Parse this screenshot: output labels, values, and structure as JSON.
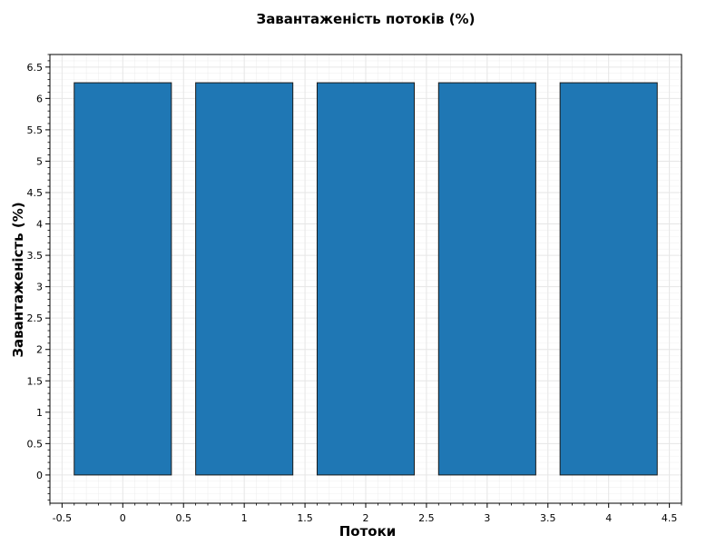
{
  "chart_data": {
    "type": "bar",
    "title": "Завантаженість потоків (%)",
    "xlabel": "Потоки",
    "ylabel": "Завантаженість (%)",
    "x": [
      0,
      1,
      2,
      3,
      4
    ],
    "values": [
      6.25,
      6.25,
      6.25,
      6.25,
      6.25
    ],
    "bar_width": 0.8,
    "xlim": [
      -0.6,
      4.6
    ],
    "ylim": [
      -0.45,
      6.7
    ],
    "xticks": [
      -0.5,
      0,
      0.5,
      1,
      1.5,
      2,
      2.5,
      3,
      3.5,
      4,
      4.5
    ],
    "xtick_labels": [
      "-0.5",
      "0",
      "0.5",
      "1",
      "1.5",
      "2",
      "2.5",
      "3",
      "3.5",
      "4",
      "4.5"
    ],
    "yticks": [
      0,
      0.5,
      1,
      1.5,
      2,
      2.5,
      3,
      3.5,
      4,
      4.5,
      5,
      5.5,
      6,
      6.5
    ],
    "ytick_labels": [
      "0",
      "0.5",
      "1",
      "1.5",
      "2",
      "2.5",
      "3",
      "3.5",
      "4",
      "4.5",
      "5",
      "5.5",
      "6",
      "6.5"
    ],
    "grid": true,
    "colors": {
      "bar": "#1f77b4",
      "bar_edge": "#1a1a1a",
      "grid": "#e6e6e6",
      "axis": "#000000"
    }
  }
}
